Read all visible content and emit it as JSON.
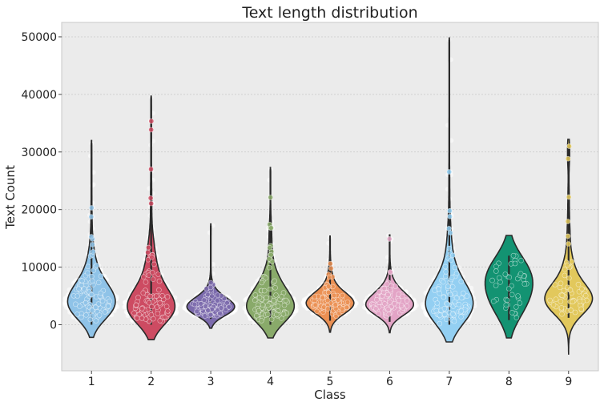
{
  "chart_data": {
    "type": "violin",
    "title": "Text length distribution",
    "xlabel": "Class",
    "ylabel": "Text Count",
    "categories": [
      "1",
      "2",
      "3",
      "4",
      "5",
      "6",
      "7",
      "8",
      "9"
    ],
    "ylim": [
      -8000,
      52500
    ],
    "yticks": [
      0,
      10000,
      20000,
      30000,
      40000,
      50000
    ],
    "ytick_labels": [
      "0",
      "10000",
      "20000",
      "30000",
      "40000",
      "50000"
    ],
    "grid": true,
    "series": [
      {
        "category": "1",
        "color": "#8fc3e8",
        "min": 0,
        "max": 31500,
        "median": 4200,
        "q1": 2700,
        "q3": 6700,
        "kde_min": -2200,
        "kde_max": 32000
      },
      {
        "category": "2",
        "color": "#cd4b62",
        "min": 0,
        "max": 39500,
        "median": 3800,
        "q1": 2200,
        "q3": 6500,
        "kde_min": -2600,
        "kde_max": 39700
      },
      {
        "category": "3",
        "color": "#7c6bad",
        "min": 1000,
        "max": 17200,
        "median": 3200,
        "q1": 2600,
        "q3": 4300,
        "kde_min": -600,
        "kde_max": 17500
      },
      {
        "category": "4",
        "color": "#89aa6a",
        "min": 0,
        "max": 27000,
        "median": 3600,
        "q1": 2200,
        "q3": 6200,
        "kde_min": -2300,
        "kde_max": 27300
      },
      {
        "category": "5",
        "color": "#eb9053",
        "min": 700,
        "max": 15200,
        "median": 3700,
        "q1": 2900,
        "q3": 5000,
        "kde_min": -1300,
        "kde_max": 15400
      },
      {
        "category": "6",
        "color": "#e3a4c6",
        "min": 500,
        "max": 15500,
        "median": 3700,
        "q1": 2700,
        "q3": 4800,
        "kde_min": -1400,
        "kde_max": 15600
      },
      {
        "category": "7",
        "color": "#93cff2",
        "min": 0,
        "max": 49500,
        "median": 4100,
        "q1": 2600,
        "q3": 7800,
        "kde_min": -3000,
        "kde_max": 49800
      },
      {
        "category": "8",
        "color": "#139372",
        "min": 800,
        "max": 12000,
        "median": 5400,
        "q1": 3000,
        "q3": 8600,
        "kde_min": -2300,
        "kde_max": 15500
      },
      {
        "category": "9",
        "color": "#e2c85c",
        "min": 1200,
        "max": 31000,
        "median": 5500,
        "q1": 3500,
        "q3": 7400,
        "kde_min": -5200,
        "kde_max": 32200
      }
    ]
  }
}
